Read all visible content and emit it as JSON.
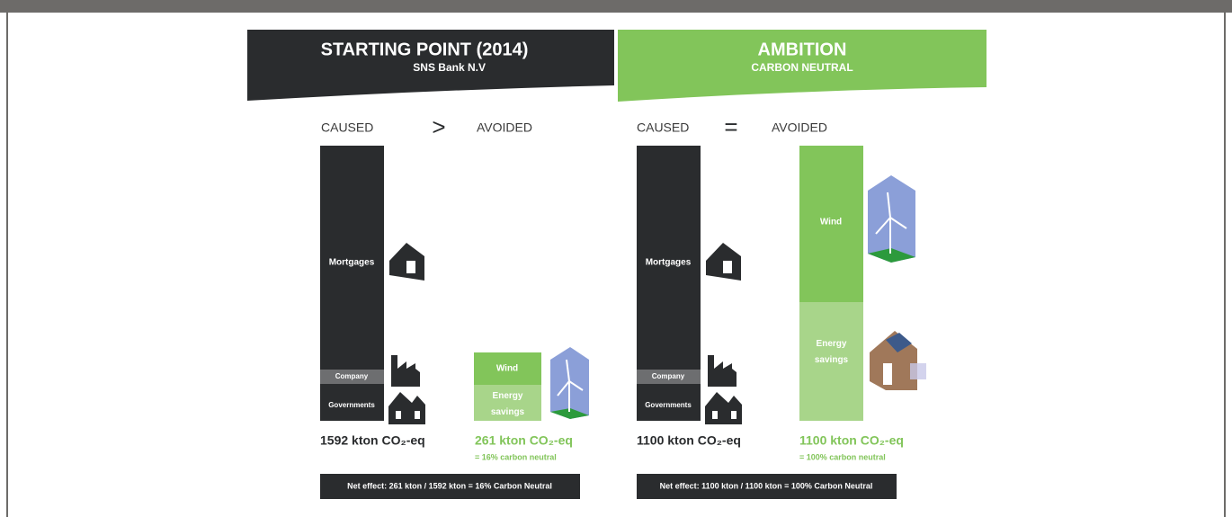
{
  "left": {
    "title": "STARTING POINT (2014)",
    "subtitle": "SNS Bank N.V",
    "caused_label": "CAUSED",
    "relation": ">",
    "avoided_label": "AVOIDED",
    "caused_segments": [
      "Mortgages",
      "Company",
      "Governments"
    ],
    "avoided_segments": [
      "Wind",
      "Energy savings"
    ],
    "caused_total": "1592 kton CO₂-eq",
    "avoided_total": "261 kton CO₂-eq",
    "avoided_note": "= 16% carbon neutral",
    "net_effect": "Net effect: 261 kton / 1592 kton = 16% Carbon Neutral"
  },
  "right": {
    "title": "AMBITION",
    "subtitle": "CARBON NEUTRAL",
    "caused_label": "CAUSED",
    "relation": "=",
    "avoided_label": "AVOIDED",
    "caused_segments": [
      "Mortgages",
      "Company",
      "Governments"
    ],
    "avoided_segments": [
      "Wind",
      "Energy savings"
    ],
    "caused_total": "1100 kton CO₂-eq",
    "avoided_total": "1100 kton CO₂-eq",
    "avoided_note": "= 100% carbon neutral",
    "net_effect": "Net effect: 1100 kton / 1100 kton = 100% Carbon Neutral"
  }
}
